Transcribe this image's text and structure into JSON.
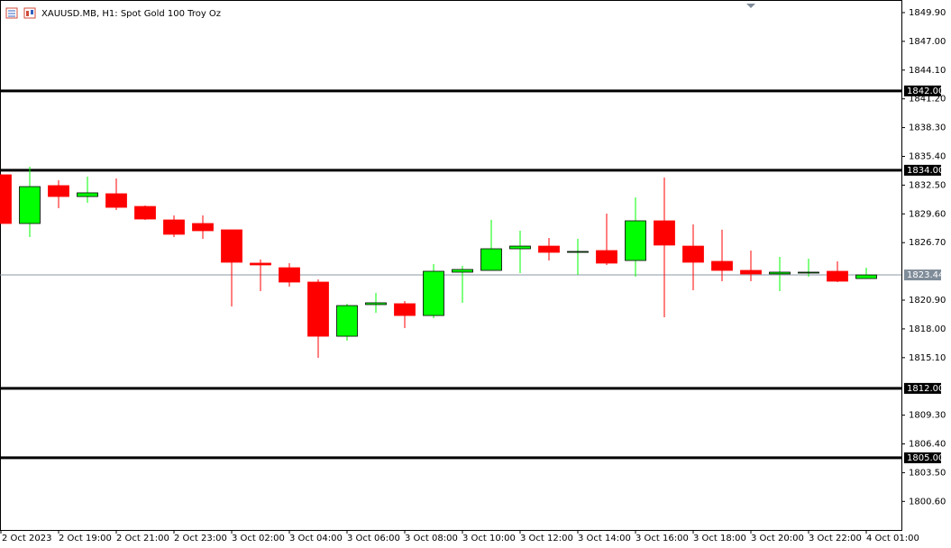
{
  "chart_data": {
    "type": "candlestick",
    "title": "XAUUSD.MB, H1:  Spot Gold 100 Troy Oz",
    "categories": [
      "2 Oct 2023",
      null,
      "2 Oct 19:00",
      null,
      "2 Oct 21:00",
      null,
      "2 Oct 23:00",
      null,
      "3 Oct 02:00",
      null,
      "3 Oct 04:00",
      null,
      "3 Oct 06:00",
      null,
      "3 Oct 08:00",
      null,
      "3 Oct 10:00",
      null,
      "3 Oct 12:00",
      null,
      "3 Oct 14:00",
      null,
      "3 Oct 16:00",
      null,
      "3 Oct 18:00",
      null,
      "3 Oct 20:00",
      null,
      "3 Oct 22:00",
      null,
      "4 Oct 01:00"
    ],
    "open": [
      1833.54,
      1828.63,
      1832.45,
      1831.35,
      1831.63,
      1830.35,
      1828.99,
      1828.63,
      1827.99,
      1824.63,
      1824.17,
      1822.72,
      1817.26,
      1820.45,
      1820.54,
      1819.35,
      1823.72,
      1823.9,
      1826.08,
      1826.35,
      1825.72,
      1825.9,
      1824.9,
      1828.9,
      1826.35,
      1824.81,
      1823.9,
      1823.54,
      1823.63,
      1823.81,
      1823.08
    ],
    "high": [
      1833.6,
      1834.35,
      1832.99,
      1833.35,
      1833.17,
      1830.45,
      1829.45,
      1829.45,
      1827.99,
      1825.0,
      1824.63,
      1822.99,
      1820.54,
      1821.63,
      1820.81,
      1824.54,
      1824.35,
      1829.0,
      1827.9,
      1827.17,
      1827.08,
      1829.63,
      1831.26,
      1833.26,
      1828.54,
      1828.0,
      1825.9,
      1825.26,
      1825.08,
      1824.81,
      1824.17
    ],
    "low": [
      1828.6,
      1827.26,
      1830.17,
      1830.72,
      1829.99,
      1828.99,
      1827.26,
      1827.08,
      1820.26,
      1821.81,
      1822.26,
      1815.08,
      1816.81,
      1819.63,
      1818.08,
      1819.08,
      1820.63,
      1823.9,
      1823.63,
      1824.9,
      1823.45,
      1824.45,
      1823.26,
      1819.17,
      1821.9,
      1822.81,
      1822.81,
      1821.81,
      1823.26,
      1822.72,
      1823.08
    ],
    "close": [
      1828.63,
      1832.35,
      1831.35,
      1831.72,
      1830.26,
      1829.08,
      1827.54,
      1827.9,
      1824.72,
      1824.45,
      1822.72,
      1817.26,
      1820.35,
      1820.63,
      1819.35,
      1823.81,
      1823.99,
      1826.08,
      1826.35,
      1825.72,
      1825.81,
      1824.63,
      1828.9,
      1826.45,
      1824.72,
      1823.9,
      1823.54,
      1823.72,
      1823.72,
      1822.81,
      1823.44
    ],
    "up_color": "#00ff00",
    "down_color": "#ff0000",
    "ylim": [
      1797.72,
      1851.17
    ],
    "yticks": [
      {
        "value": 1849.9,
        "label": "1849.90"
      },
      {
        "value": 1847,
        "label": "1847.00"
      },
      {
        "value": 1844.1,
        "label": "1844.10"
      },
      {
        "value": 1841.2,
        "label": "1841.20"
      },
      {
        "value": 1838.3,
        "label": "1838.30"
      },
      {
        "value": 1835.4,
        "label": "1835.40"
      },
      {
        "value": 1832.5,
        "label": "1832.50"
      },
      {
        "value": 1829.6,
        "label": "1829.60"
      },
      {
        "value": 1826.7,
        "label": "1826.70"
      },
      {
        "value": 1820.9,
        "label": "1820.90"
      },
      {
        "value": 1818,
        "label": "1818.00"
      },
      {
        "value": 1815.1,
        "label": "1815.10"
      },
      {
        "value": 1809.3,
        "label": "1809.30"
      },
      {
        "value": 1806.4,
        "label": "1806.40"
      },
      {
        "value": 1803.5,
        "label": "1803.50"
      },
      {
        "value": 1800.6,
        "label": "1800.60"
      }
    ],
    "hlines": [
      {
        "value": 1842,
        "label": "1842.00"
      },
      {
        "value": 1834,
        "label": "1834.00"
      },
      {
        "value": 1812,
        "label": "1812.00"
      },
      {
        "value": 1805,
        "label": "1805.00"
      }
    ],
    "current_price": 1823.44,
    "grid": false
  }
}
